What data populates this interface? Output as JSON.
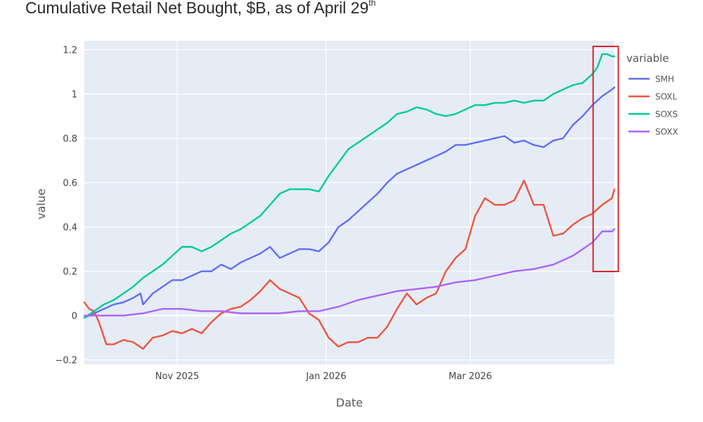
{
  "title": {
    "text": "Cumulative Retail Net Bought, $B, as of April 29",
    "superscript": "th"
  },
  "chart_data": {
    "type": "line",
    "xlabel": "Date",
    "ylabel": "value",
    "x_type": "date",
    "xlim": [
      "2025-09-24",
      "2026-04-29"
    ],
    "ylim": [
      -0.22,
      1.24
    ],
    "grid": true,
    "plot_background": "#e5ecf6",
    "x_ticks": [
      {
        "date": "2025-11-01",
        "label": "Nov 2025"
      },
      {
        "date": "2026-01-01",
        "label": "Jan 2026"
      },
      {
        "date": "2026-03-01",
        "label": "Mar 2026"
      }
    ],
    "y_ticks": [
      {
        "value": -0.2,
        "label": "−0.2"
      },
      {
        "value": 0,
        "label": "0"
      },
      {
        "value": 0.2,
        "label": "0.2"
      },
      {
        "value": 0.4,
        "label": "0.4"
      },
      {
        "value": 0.6,
        "label": "0.6"
      },
      {
        "value": 0.8,
        "label": "0.8"
      },
      {
        "value": 1,
        "label": "1"
      },
      {
        "value": 1.2,
        "label": "1.2"
      }
    ],
    "legend": {
      "title": "variable",
      "placement": "right"
    },
    "highlight_box": {
      "x_start": "2026-04-22",
      "x_end": "2026-04-30",
      "y_start": 0.2,
      "y_end": 1.25,
      "color": "#d62728"
    },
    "series": [
      {
        "name": "SMH",
        "color": "#636efa",
        "x": [
          "2025-09-24",
          "2025-09-28",
          "2025-10-02",
          "2025-10-06",
          "2025-10-10",
          "2025-10-14",
          "2025-10-17",
          "2025-10-18",
          "2025-10-22",
          "2025-10-26",
          "2025-10-30",
          "2025-11-03",
          "2025-11-07",
          "2025-11-11",
          "2025-11-15",
          "2025-11-19",
          "2025-11-23",
          "2025-11-27",
          "2025-12-01",
          "2025-12-05",
          "2025-12-09",
          "2025-12-13",
          "2025-12-17",
          "2025-12-21",
          "2025-12-25",
          "2025-12-29",
          "2026-01-02",
          "2026-01-06",
          "2026-01-10",
          "2026-01-14",
          "2026-01-18",
          "2026-01-22",
          "2026-01-26",
          "2026-01-30",
          "2026-02-03",
          "2026-02-07",
          "2026-02-11",
          "2026-02-15",
          "2026-02-19",
          "2026-02-23",
          "2026-02-27",
          "2026-03-03",
          "2026-03-07",
          "2026-03-11",
          "2026-03-15",
          "2026-03-19",
          "2026-03-23",
          "2026-03-27",
          "2026-03-31",
          "2026-04-04",
          "2026-04-08",
          "2026-04-12",
          "2026-04-16",
          "2026-04-20",
          "2026-04-24",
          "2026-04-28",
          "2026-04-29"
        ],
        "values": [
          -0.01,
          0.01,
          0.03,
          0.05,
          0.06,
          0.08,
          0.1,
          0.05,
          0.1,
          0.13,
          0.16,
          0.16,
          0.18,
          0.2,
          0.2,
          0.23,
          0.21,
          0.24,
          0.26,
          0.28,
          0.31,
          0.26,
          0.28,
          0.3,
          0.3,
          0.29,
          0.33,
          0.4,
          0.43,
          0.47,
          0.51,
          0.55,
          0.6,
          0.64,
          0.66,
          0.68,
          0.7,
          0.72,
          0.74,
          0.77,
          0.77,
          0.78,
          0.79,
          0.8,
          0.81,
          0.78,
          0.79,
          0.77,
          0.76,
          0.79,
          0.8,
          0.86,
          0.9,
          0.95,
          0.99,
          1.02,
          1.03
        ]
      },
      {
        "name": "SOXL",
        "color": "#ef553b",
        "x": [
          "2025-09-24",
          "2025-09-26",
          "2025-09-28",
          "2025-09-30",
          "2025-10-03",
          "2025-10-06",
          "2025-10-10",
          "2025-10-14",
          "2025-10-18",
          "2025-10-22",
          "2025-10-26",
          "2025-10-30",
          "2025-11-03",
          "2025-11-07",
          "2025-11-11",
          "2025-11-15",
          "2025-11-19",
          "2025-11-23",
          "2025-11-27",
          "2025-12-01",
          "2025-12-05",
          "2025-12-09",
          "2025-12-13",
          "2025-12-17",
          "2025-12-21",
          "2025-12-25",
          "2025-12-29",
          "2026-01-02",
          "2026-01-06",
          "2026-01-10",
          "2026-01-14",
          "2026-01-18",
          "2026-01-22",
          "2026-01-26",
          "2026-01-30",
          "2026-02-03",
          "2026-02-07",
          "2026-02-11",
          "2026-02-15",
          "2026-02-19",
          "2026-02-23",
          "2026-02-27",
          "2026-03-03",
          "2026-03-07",
          "2026-03-11",
          "2026-03-15",
          "2026-03-19",
          "2026-03-23",
          "2026-03-27",
          "2026-03-31",
          "2026-04-04",
          "2026-04-08",
          "2026-04-12",
          "2026-04-16",
          "2026-04-20",
          "2026-04-24",
          "2026-04-28",
          "2026-04-29"
        ],
        "values": [
          0.06,
          0.03,
          0.02,
          -0.03,
          -0.13,
          -0.13,
          -0.11,
          -0.12,
          -0.15,
          -0.1,
          -0.09,
          -0.07,
          -0.08,
          -0.06,
          -0.08,
          -0.03,
          0.01,
          0.03,
          0.04,
          0.07,
          0.11,
          0.16,
          0.12,
          0.1,
          0.08,
          0.01,
          -0.02,
          -0.1,
          -0.14,
          -0.12,
          -0.12,
          -0.1,
          -0.1,
          -0.05,
          0.03,
          0.1,
          0.05,
          0.08,
          0.1,
          0.2,
          0.26,
          0.3,
          0.45,
          0.53,
          0.5,
          0.5,
          0.52,
          0.61,
          0.5,
          0.5,
          0.36,
          0.37,
          0.41,
          0.44,
          0.46,
          0.5,
          0.53,
          0.57
        ]
      },
      {
        "name": "SOXS",
        "color": "#00cc96",
        "x": [
          "2025-09-24",
          "2025-09-28",
          "2025-10-02",
          "2025-10-06",
          "2025-10-10",
          "2025-10-14",
          "2025-10-18",
          "2025-10-22",
          "2025-10-26",
          "2025-10-30",
          "2025-11-03",
          "2025-11-07",
          "2025-11-11",
          "2025-11-15",
          "2025-11-19",
          "2025-11-23",
          "2025-11-27",
          "2025-12-01",
          "2025-12-05",
          "2025-12-09",
          "2025-12-13",
          "2025-12-17",
          "2025-12-21",
          "2025-12-25",
          "2025-12-29",
          "2026-01-02",
          "2026-01-06",
          "2026-01-10",
          "2026-01-14",
          "2026-01-18",
          "2026-01-22",
          "2026-01-26",
          "2026-01-30",
          "2026-02-03",
          "2026-02-07",
          "2026-02-11",
          "2026-02-15",
          "2026-02-19",
          "2026-02-23",
          "2026-02-27",
          "2026-03-03",
          "2026-03-07",
          "2026-03-11",
          "2026-03-15",
          "2026-03-19",
          "2026-03-23",
          "2026-03-27",
          "2026-03-31",
          "2026-04-04",
          "2026-04-08",
          "2026-04-12",
          "2026-04-16",
          "2026-04-20",
          "2026-04-22",
          "2026-04-24",
          "2026-04-26",
          "2026-04-28",
          "2026-04-29"
        ],
        "values": [
          -0.01,
          0.02,
          0.05,
          0.07,
          0.1,
          0.13,
          0.17,
          0.2,
          0.23,
          0.27,
          0.31,
          0.31,
          0.29,
          0.31,
          0.34,
          0.37,
          0.39,
          0.42,
          0.45,
          0.5,
          0.55,
          0.57,
          0.57,
          0.57,
          0.56,
          0.63,
          0.69,
          0.75,
          0.78,
          0.81,
          0.84,
          0.87,
          0.91,
          0.92,
          0.94,
          0.93,
          0.91,
          0.9,
          0.91,
          0.93,
          0.95,
          0.95,
          0.96,
          0.96,
          0.97,
          0.96,
          0.97,
          0.97,
          1.0,
          1.02,
          1.04,
          1.05,
          1.09,
          1.12,
          1.18,
          1.18,
          1.17,
          1.17
        ]
      },
      {
        "name": "SOXX",
        "color": "#ab63fa",
        "x": [
          "2025-09-24",
          "2025-10-02",
          "2025-10-10",
          "2025-10-18",
          "2025-10-26",
          "2025-11-03",
          "2025-11-11",
          "2025-11-19",
          "2025-11-27",
          "2025-12-05",
          "2025-12-13",
          "2025-12-21",
          "2025-12-29",
          "2026-01-06",
          "2026-01-14",
          "2026-01-22",
          "2026-01-30",
          "2026-02-07",
          "2026-02-15",
          "2026-02-23",
          "2026-03-03",
          "2026-03-11",
          "2026-03-19",
          "2026-03-27",
          "2026-04-04",
          "2026-04-12",
          "2026-04-16",
          "2026-04-20",
          "2026-04-24",
          "2026-04-28",
          "2026-04-29"
        ],
        "values": [
          0.0,
          0.0,
          0.0,
          0.01,
          0.03,
          0.03,
          0.02,
          0.02,
          0.01,
          0.01,
          0.01,
          0.02,
          0.02,
          0.04,
          0.07,
          0.09,
          0.11,
          0.12,
          0.13,
          0.15,
          0.16,
          0.18,
          0.2,
          0.21,
          0.23,
          0.27,
          0.3,
          0.33,
          0.38,
          0.38,
          0.39
        ]
      }
    ]
  }
}
